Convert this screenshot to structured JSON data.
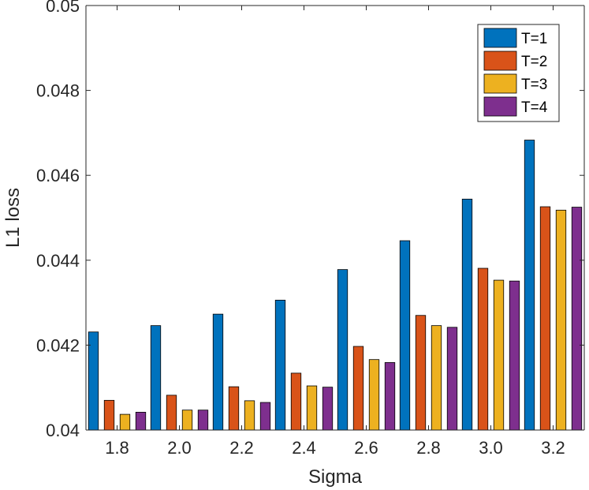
{
  "chart_data": {
    "type": "bar",
    "title": "",
    "xlabel": "Sigma",
    "ylabel": "L1 loss",
    "categories": [
      "1.8",
      "2.0",
      "2.2",
      "2.4",
      "2.6",
      "2.8",
      "3.0",
      "3.2"
    ],
    "ylim": [
      0.04,
      0.05
    ],
    "yticks": [
      0.04,
      0.042,
      0.044,
      0.046,
      0.048,
      0.05
    ],
    "ytick_labels": [
      "0.04",
      "0.042",
      "0.044",
      "0.046",
      "0.048",
      "0.05"
    ],
    "legend_position": "top-right",
    "series": [
      {
        "name": "T=1",
        "color": "#0072BD",
        "values": [
          0.04231,
          0.04246,
          0.04273,
          0.04306,
          0.04378,
          0.04446,
          0.04544,
          0.04683
        ]
      },
      {
        "name": "T=2",
        "color": "#D95319",
        "values": [
          0.0407,
          0.04082,
          0.04102,
          0.04134,
          0.04197,
          0.0427,
          0.04381,
          0.04526
        ]
      },
      {
        "name": "T=3",
        "color": "#EDB120",
        "values": [
          0.04037,
          0.04047,
          0.04069,
          0.04104,
          0.04166,
          0.04246,
          0.04353,
          0.04518
        ]
      },
      {
        "name": "T=4",
        "color": "#7E2F8E",
        "values": [
          0.04042,
          0.04047,
          0.04065,
          0.04101,
          0.04159,
          0.04242,
          0.04351,
          0.04525
        ]
      }
    ]
  }
}
